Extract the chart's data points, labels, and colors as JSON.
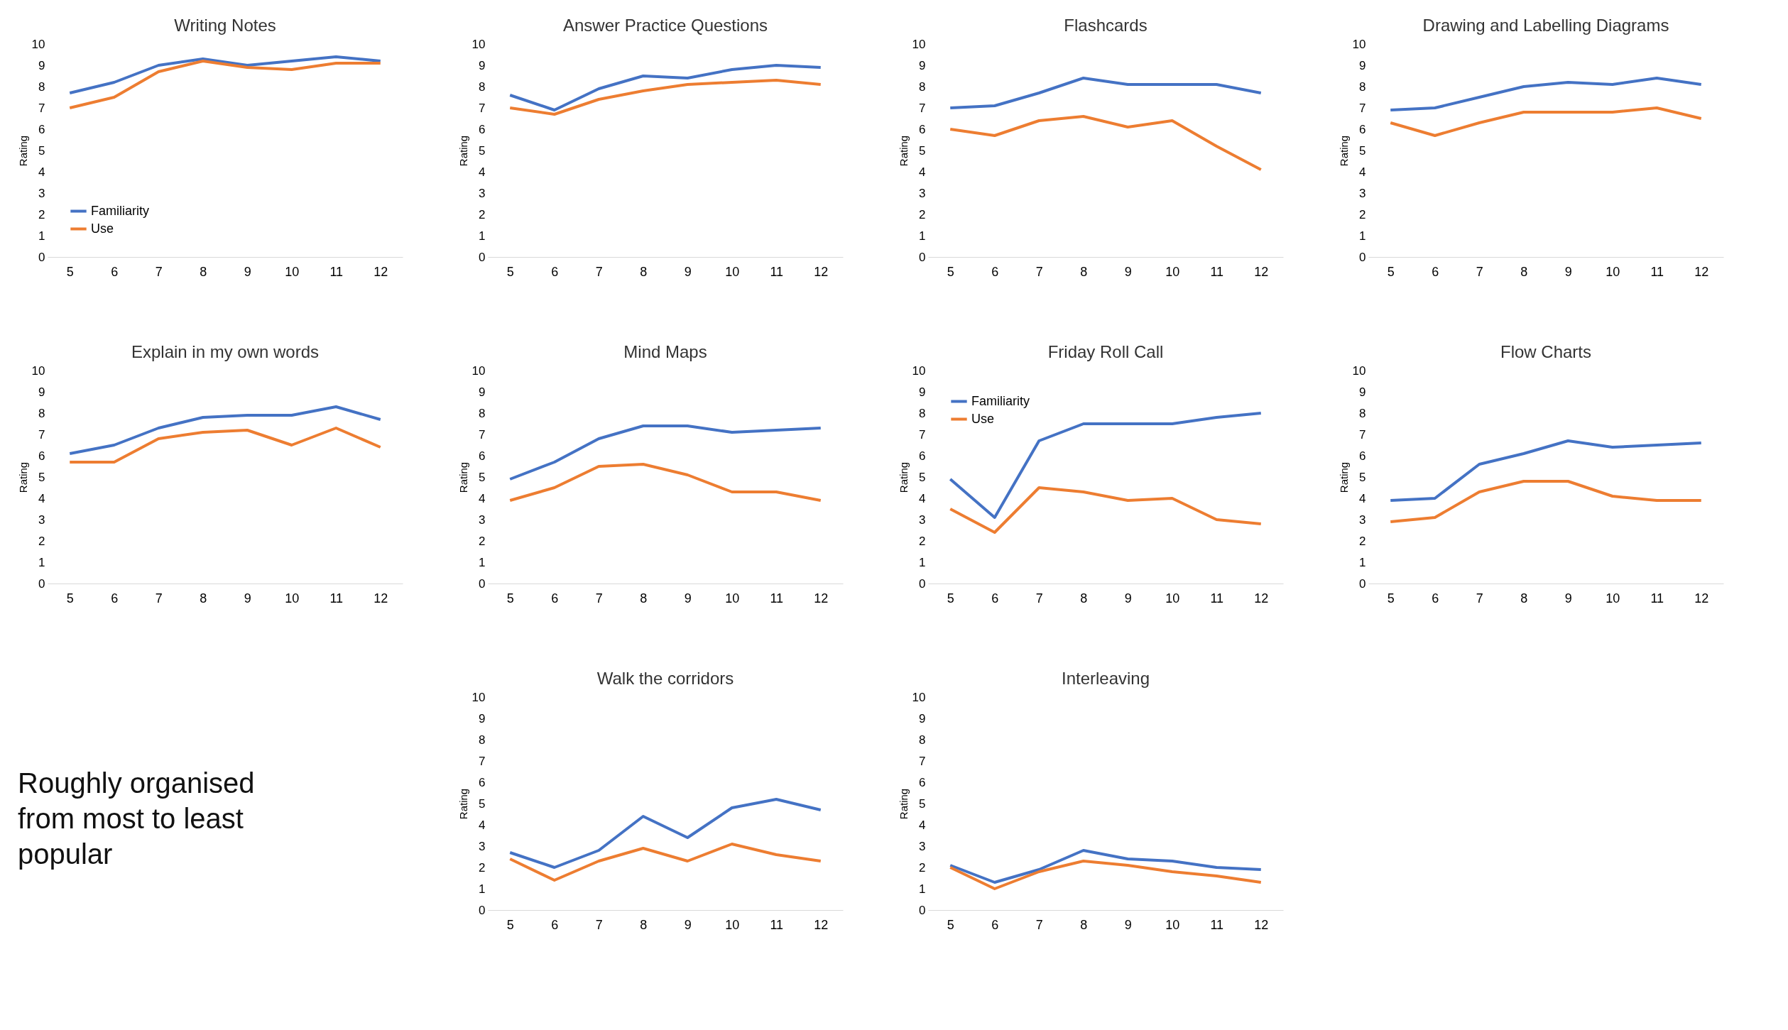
{
  "chart_data": [
    {
      "type": "line",
      "title": "Writing Notes",
      "ylabel": "Rating",
      "categories": [
        "5",
        "6",
        "7",
        "8",
        "9",
        "10",
        "11",
        "12"
      ],
      "ylim": [
        0,
        10
      ],
      "yticks": [
        0,
        1,
        2,
        3,
        4,
        5,
        6,
        7,
        8,
        9,
        10
      ],
      "legend": "bottom left",
      "series": [
        {
          "name": "Familiarity",
          "color": "#4472c4",
          "values": [
            7.7,
            8.2,
            9.0,
            9.3,
            9.0,
            9.2,
            9.4,
            9.2
          ]
        },
        {
          "name": "Use",
          "color": "#ed7d31",
          "values": [
            7.0,
            7.5,
            8.7,
            9.2,
            8.9,
            8.8,
            9.1,
            9.1
          ]
        }
      ]
    },
    {
      "type": "line",
      "title": "Answer Practice Questions",
      "ylabel": "Rating",
      "categories": [
        "5",
        "6",
        "7",
        "8",
        "9",
        "10",
        "11",
        "12"
      ],
      "ylim": [
        0,
        10
      ],
      "yticks": [
        0,
        1,
        2,
        3,
        4,
        5,
        6,
        7,
        8,
        9,
        10
      ],
      "series": [
        {
          "color": "#4472c4",
          "values": [
            7.6,
            6.9,
            7.9,
            8.5,
            8.4,
            8.8,
            9.0,
            8.9
          ]
        },
        {
          "color": "#ed7d31",
          "values": [
            7.0,
            6.7,
            7.4,
            7.8,
            8.1,
            8.2,
            8.3,
            8.1
          ]
        }
      ]
    },
    {
      "type": "line",
      "title": "Flashcards",
      "ylabel": "Rating",
      "categories": [
        "5",
        "6",
        "7",
        "8",
        "9",
        "10",
        "11",
        "12"
      ],
      "ylim": [
        0,
        10
      ],
      "yticks": [
        0,
        1,
        2,
        3,
        4,
        5,
        6,
        7,
        8,
        9,
        10
      ],
      "series": [
        {
          "color": "#4472c4",
          "values": [
            7.0,
            7.1,
            7.7,
            8.4,
            8.1,
            8.1,
            8.1,
            7.7
          ]
        },
        {
          "color": "#ed7d31",
          "values": [
            6.0,
            5.7,
            6.4,
            6.6,
            6.1,
            6.4,
            5.2,
            4.1
          ]
        }
      ]
    },
    {
      "type": "line",
      "title": "Drawing and Labelling Diagrams",
      "ylabel": "Rating",
      "categories": [
        "5",
        "6",
        "7",
        "8",
        "9",
        "10",
        "11",
        "12"
      ],
      "ylim": [
        0,
        10
      ],
      "yticks": [
        0,
        1,
        2,
        3,
        4,
        5,
        6,
        7,
        8,
        9,
        10
      ],
      "series": [
        {
          "color": "#4472c4",
          "values": [
            6.9,
            7.0,
            7.5,
            8.0,
            8.2,
            8.1,
            8.4,
            8.1
          ]
        },
        {
          "color": "#ed7d31",
          "values": [
            6.3,
            5.7,
            6.3,
            6.8,
            6.8,
            6.8,
            7.0,
            6.5
          ]
        }
      ]
    },
    {
      "type": "line",
      "title": "Explain in my own words",
      "ylabel": "Rating",
      "categories": [
        "5",
        "6",
        "7",
        "8",
        "9",
        "10",
        "11",
        "12"
      ],
      "ylim": [
        0,
        10
      ],
      "yticks": [
        0,
        1,
        2,
        3,
        4,
        5,
        6,
        7,
        8,
        9,
        10
      ],
      "series": [
        {
          "color": "#4472c4",
          "values": [
            6.1,
            6.5,
            7.3,
            7.8,
            7.9,
            7.9,
            8.3,
            7.7
          ]
        },
        {
          "color": "#ed7d31",
          "values": [
            5.7,
            5.7,
            6.8,
            7.1,
            7.2,
            6.5,
            7.3,
            6.4
          ]
        }
      ]
    },
    {
      "type": "line",
      "title": "Mind Maps",
      "ylabel": "Rating",
      "categories": [
        "5",
        "6",
        "7",
        "8",
        "9",
        "10",
        "11",
        "12"
      ],
      "ylim": [
        0,
        10
      ],
      "yticks": [
        0,
        1,
        2,
        3,
        4,
        5,
        6,
        7,
        8,
        9,
        10
      ],
      "series": [
        {
          "color": "#4472c4",
          "values": [
            4.9,
            5.7,
            6.8,
            7.4,
            7.4,
            7.1,
            7.2,
            7.3
          ]
        },
        {
          "color": "#ed7d31",
          "values": [
            3.9,
            4.5,
            5.5,
            5.6,
            5.1,
            4.3,
            4.3,
            3.9
          ]
        }
      ]
    },
    {
      "type": "line",
      "title": "Friday Roll Call",
      "ylabel": "Rating",
      "categories": [
        "5",
        "6",
        "7",
        "8",
        "9",
        "10",
        "11",
        "12"
      ],
      "ylim": [
        0,
        10
      ],
      "yticks": [
        0,
        1,
        2,
        3,
        4,
        5,
        6,
        7,
        8,
        9,
        10
      ],
      "legend": "top left",
      "series": [
        {
          "name": "Familiarity",
          "color": "#4472c4",
          "values": [
            4.9,
            3.1,
            6.7,
            7.5,
            7.5,
            7.5,
            7.8,
            8.0
          ]
        },
        {
          "name": "Use",
          "color": "#ed7d31",
          "values": [
            3.5,
            2.4,
            4.5,
            4.3,
            3.9,
            4.0,
            3.0,
            2.8
          ]
        }
      ]
    },
    {
      "type": "line",
      "title": "Flow Charts",
      "ylabel": "Rating",
      "categories": [
        "5",
        "6",
        "7",
        "8",
        "9",
        "10",
        "11",
        "12"
      ],
      "ylim": [
        0,
        10
      ],
      "yticks": [
        0,
        1,
        2,
        3,
        4,
        5,
        6,
        7,
        8,
        9,
        10
      ],
      "series": [
        {
          "color": "#4472c4",
          "values": [
            3.9,
            4.0,
            5.6,
            6.1,
            6.7,
            6.4,
            6.5,
            6.6
          ]
        },
        {
          "color": "#ed7d31",
          "values": [
            2.9,
            3.1,
            4.3,
            4.8,
            4.8,
            4.1,
            3.9,
            3.9
          ]
        }
      ]
    },
    {
      "type": "other",
      "annotations": [
        "Roughly organised from most to least popular"
      ]
    },
    {
      "type": "line",
      "title": "Walk the corridors",
      "ylabel": "Rating",
      "categories": [
        "5",
        "6",
        "7",
        "8",
        "9",
        "10",
        "11",
        "12"
      ],
      "ylim": [
        0,
        10
      ],
      "yticks": [
        0,
        1,
        2,
        3,
        4,
        5,
        6,
        7,
        8,
        9,
        10
      ],
      "series": [
        {
          "color": "#4472c4",
          "values": [
            2.7,
            2.0,
            2.8,
            4.4,
            3.4,
            4.8,
            5.2,
            4.7
          ]
        },
        {
          "color": "#ed7d31",
          "values": [
            2.4,
            1.4,
            2.3,
            2.9,
            2.3,
            3.1,
            2.6,
            2.3
          ]
        }
      ]
    },
    {
      "type": "line",
      "title": "Interleaving",
      "ylabel": "Rating",
      "categories": [
        "5",
        "6",
        "7",
        "8",
        "9",
        "10",
        "11",
        "12"
      ],
      "ylim": [
        0,
        10
      ],
      "yticks": [
        0,
        1,
        2,
        3,
        4,
        5,
        6,
        7,
        8,
        9,
        10
      ],
      "series": [
        {
          "color": "#4472c4",
          "values": [
            2.1,
            1.3,
            1.9,
            2.8,
            2.4,
            2.3,
            2.0,
            1.9
          ]
        },
        {
          "color": "#ed7d31",
          "values": [
            2.0,
            1.0,
            1.8,
            2.3,
            2.1,
            1.8,
            1.6,
            1.3
          ]
        }
      ]
    }
  ]
}
